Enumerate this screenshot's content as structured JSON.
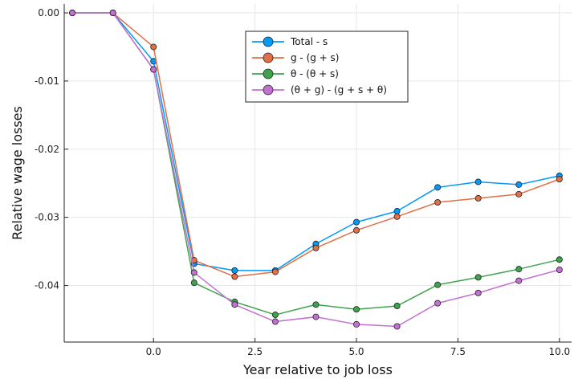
{
  "chart_data": {
    "type": "line",
    "xlabel": "Year relative to job loss",
    "ylabel": "Relative wage losses",
    "xlim": [
      -2.2,
      10.3
    ],
    "ylim": [
      -0.0483,
      0.0013
    ],
    "x_ticks": [
      0.0,
      2.5,
      5.0,
      7.5,
      10.0
    ],
    "x_tick_labels": [
      "0.0",
      "2.5",
      "5.0",
      "7.5",
      "10.0"
    ],
    "y_ticks": [
      0.0,
      -0.01,
      -0.02,
      -0.03,
      -0.04
    ],
    "y_tick_labels": [
      "0.00",
      "-0.01",
      "-0.02",
      "-0.03",
      "-0.04"
    ],
    "grid": true,
    "legend_position": "top-right",
    "x": [
      -2,
      -1,
      0,
      1,
      2,
      3,
      4,
      5,
      6,
      7,
      8,
      9,
      10
    ],
    "series": [
      {
        "name": "Total - s",
        "color": "#009af9",
        "values": [
          0.0,
          0.0,
          -0.0071,
          -0.0368,
          -0.0378,
          -0.0378,
          -0.0339,
          -0.0307,
          -0.0291,
          -0.0256,
          -0.0248,
          -0.0252,
          -0.0239
        ]
      },
      {
        "name": "g - (g + s)",
        "color": "#e26f46",
        "values": [
          0.0,
          0.0,
          -0.005,
          -0.0363,
          -0.0387,
          -0.038,
          -0.0345,
          -0.0319,
          -0.0299,
          -0.0278,
          -0.0272,
          -0.0266,
          -0.0244
        ]
      },
      {
        "name": "θ - (θ + s)",
        "color": "#3da44d",
        "values": [
          0.0,
          0.0,
          -0.0083,
          -0.0396,
          -0.0424,
          -0.0443,
          -0.0428,
          -0.0435,
          -0.043,
          -0.0399,
          -0.0388,
          -0.0376,
          -0.0362
        ]
      },
      {
        "name": "(θ + g) - (g + s + θ)",
        "color": "#c271d2",
        "values": [
          0.0,
          0.0,
          -0.0083,
          -0.0381,
          -0.0428,
          -0.0453,
          -0.0446,
          -0.0457,
          -0.046,
          -0.0426,
          -0.0411,
          -0.0393,
          -0.0377
        ]
      }
    ]
  }
}
